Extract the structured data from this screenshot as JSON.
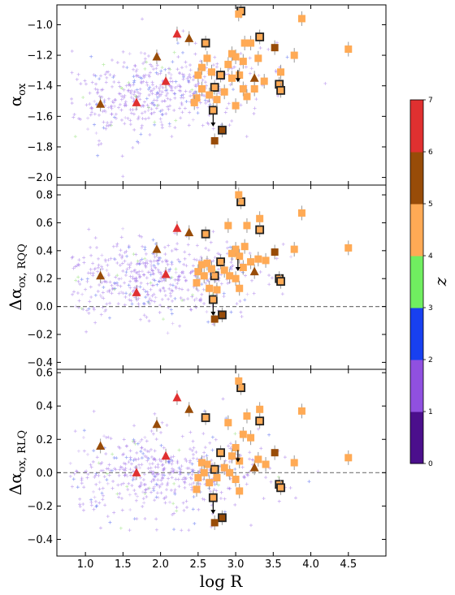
{
  "chart_data": {
    "type": "scatter",
    "x_axis": {
      "label": "log R",
      "xlim": [
        0.62,
        5.0
      ],
      "ticks": [
        1.0,
        1.5,
        2.0,
        2.5,
        3.0,
        3.5,
        4.0,
        4.5
      ],
      "tick_labels": [
        "1.0",
        "1.5",
        "2.0",
        "2.5",
        "3.0",
        "3.5",
        "4.0",
        "4.5"
      ]
    },
    "colorbar": {
      "label": "z",
      "ticks": [
        0,
        1,
        2,
        3,
        4,
        5,
        6,
        7
      ],
      "tick_labels": [
        "0",
        "1",
        "2",
        "3",
        "4",
        "5",
        "6",
        "7"
      ],
      "colors": [
        "#4b0f8c",
        "#9050e0",
        "#1840f0",
        "#70ee60",
        "#ffaa55",
        "#984c08",
        "#e03030"
      ]
    },
    "panels": [
      {
        "id": "alpha-ox",
        "ylabel": "α_ox",
        "ylim": [
          -2.05,
          -0.87
        ],
        "yticks": [
          -2.0,
          -1.8,
          -1.6,
          -1.4,
          -1.2,
          -1.0
        ],
        "ytick_labels": [
          "−2.0",
          "−1.8",
          "−1.6",
          "−1.4",
          "−1.2",
          "−1.0"
        ],
        "reference_line": null,
        "triangles": [
          {
            "x": 1.2,
            "y": -1.52,
            "z": 5.3
          },
          {
            "x": 1.68,
            "y": -1.51,
            "z": 6.5
          },
          {
            "x": 1.95,
            "y": -1.21,
            "z": 5.3
          },
          {
            "x": 2.07,
            "y": -1.37,
            "z": 6.5
          },
          {
            "x": 2.22,
            "y": -1.06,
            "z": 6.5
          },
          {
            "x": 2.38,
            "y": -1.09,
            "z": 5.3
          },
          {
            "x": 3.25,
            "y": -1.35,
            "z": 5.3
          }
        ],
        "squares": [
          {
            "x": 2.6,
            "y": -1.12,
            "z": 4.5,
            "boxed": true
          },
          {
            "x": 2.72,
            "y": -1.41,
            "z": 4.5,
            "boxed": true
          },
          {
            "x": 2.8,
            "y": -1.33,
            "z": 4.5,
            "boxed": true
          },
          {
            "x": 2.7,
            "y": -1.56,
            "z": 4.5,
            "boxed": true
          },
          {
            "x": 2.82,
            "y": -1.69,
            "z": 5.3,
            "boxed": true
          },
          {
            "x": 3.07,
            "y": -0.91,
            "z": 4.5,
            "boxed": true
          },
          {
            "x": 3.32,
            "y": -1.08,
            "z": 4.5,
            "boxed": true
          },
          {
            "x": 3.58,
            "y": -1.39,
            "z": 4.5,
            "boxed": true
          },
          {
            "x": 3.6,
            "y": -1.43,
            "z": 4.5,
            "boxed": true
          },
          {
            "x": 2.72,
            "y": -1.76,
            "z": 5.3,
            "boxed": false
          },
          {
            "x": 3.04,
            "y": -0.93,
            "z": 4.5,
            "boxed": false
          },
          {
            "x": 3.88,
            "y": -0.96,
            "z": 4.5,
            "boxed": false
          },
          {
            "x": 4.5,
            "y": -1.16,
            "z": 4.5,
            "boxed": false
          },
          {
            "x": 3.52,
            "y": -1.15,
            "z": 5.3,
            "boxed": false
          },
          {
            "x": 3.78,
            "y": -1.2,
            "z": 4.5,
            "boxed": false
          },
          {
            "x": 3.6,
            "y": -1.31,
            "z": 4.5,
            "boxed": false
          },
          {
            "x": 3.12,
            "y": -1.12,
            "z": 4.5,
            "boxed": false
          },
          {
            "x": 3.2,
            "y": -1.12,
            "z": 4.5,
            "boxed": false
          },
          {
            "x": 2.55,
            "y": -1.28,
            "z": 4.5,
            "boxed": false
          },
          {
            "x": 2.62,
            "y": -1.22,
            "z": 4.5,
            "boxed": false
          },
          {
            "x": 2.5,
            "y": -1.33,
            "z": 4.5,
            "boxed": false
          },
          {
            "x": 2.9,
            "y": -1.26,
            "z": 4.5,
            "boxed": false
          },
          {
            "x": 3.0,
            "y": -1.21,
            "z": 4.5,
            "boxed": false
          },
          {
            "x": 3.05,
            "y": -1.33,
            "z": 4.5,
            "boxed": false
          },
          {
            "x": 2.95,
            "y": -1.35,
            "z": 4.5,
            "boxed": false
          },
          {
            "x": 2.55,
            "y": -1.42,
            "z": 4.5,
            "boxed": false
          },
          {
            "x": 2.48,
            "y": -1.48,
            "z": 4.5,
            "boxed": false
          },
          {
            "x": 2.65,
            "y": -1.46,
            "z": 4.5,
            "boxed": false
          },
          {
            "x": 2.45,
            "y": -1.51,
            "z": 4.5,
            "boxed": false
          },
          {
            "x": 2.75,
            "y": -1.49,
            "z": 4.5,
            "boxed": false
          },
          {
            "x": 2.85,
            "y": -1.44,
            "z": 4.5,
            "boxed": false
          },
          {
            "x": 3.1,
            "y": -1.42,
            "z": 4.5,
            "boxed": false
          },
          {
            "x": 3.15,
            "y": -1.47,
            "z": 4.5,
            "boxed": false
          },
          {
            "x": 3.0,
            "y": -1.53,
            "z": 4.5,
            "boxed": false
          },
          {
            "x": 3.3,
            "y": -1.22,
            "z": 4.5,
            "boxed": false
          },
          {
            "x": 3.38,
            "y": -1.37,
            "z": 4.5,
            "boxed": false
          },
          {
            "x": 3.25,
            "y": -1.42,
            "z": 4.5,
            "boxed": false
          },
          {
            "x": 2.68,
            "y": -1.31,
            "z": 4.5,
            "boxed": false
          },
          {
            "x": 2.95,
            "y": -1.19,
            "z": 4.5,
            "boxed": false
          },
          {
            "x": 3.1,
            "y": -1.24,
            "z": 4.5,
            "boxed": false
          }
        ],
        "upper_limits": [
          {
            "x": 2.7,
            "y": -1.56
          },
          {
            "x": 3.03,
            "y": -1.27
          }
        ]
      },
      {
        "id": "delta-alpha-ox-rqq",
        "ylabel": "Δα_ox,RQQ",
        "ylim": [
          -0.45,
          0.87
        ],
        "yticks": [
          -0.4,
          -0.2,
          0.0,
          0.2,
          0.4,
          0.6,
          0.8
        ],
        "ytick_labels": [
          "−0.4",
          "−0.2",
          "0.0",
          "0.2",
          "0.4",
          "0.6",
          "0.8"
        ],
        "reference_line": 0.0,
        "triangles": [
          {
            "x": 1.2,
            "y": 0.22,
            "z": 5.3
          },
          {
            "x": 1.68,
            "y": 0.1,
            "z": 6.5
          },
          {
            "x": 1.95,
            "y": 0.41,
            "z": 5.3
          },
          {
            "x": 2.07,
            "y": 0.23,
            "z": 6.5
          },
          {
            "x": 2.22,
            "y": 0.56,
            "z": 6.5
          },
          {
            "x": 2.38,
            "y": 0.53,
            "z": 5.3
          },
          {
            "x": 3.25,
            "y": 0.25,
            "z": 5.3
          }
        ],
        "squares": [
          {
            "x": 2.6,
            "y": 0.52,
            "z": 4.5,
            "boxed": true
          },
          {
            "x": 2.72,
            "y": 0.22,
            "z": 4.5,
            "boxed": true
          },
          {
            "x": 2.8,
            "y": 0.32,
            "z": 4.5,
            "boxed": true
          },
          {
            "x": 2.7,
            "y": 0.05,
            "z": 4.5,
            "boxed": true
          },
          {
            "x": 2.82,
            "y": -0.06,
            "z": 5.3,
            "boxed": true
          },
          {
            "x": 3.07,
            "y": 0.75,
            "z": 4.5,
            "boxed": true
          },
          {
            "x": 3.32,
            "y": 0.55,
            "z": 4.5,
            "boxed": true
          },
          {
            "x": 3.58,
            "y": 0.2,
            "z": 4.5,
            "boxed": true
          },
          {
            "x": 3.6,
            "y": 0.18,
            "z": 4.5,
            "boxed": true
          },
          {
            "x": 2.72,
            "y": -0.09,
            "z": 5.3,
            "boxed": false
          },
          {
            "x": 3.04,
            "y": 0.8,
            "z": 4.5,
            "boxed": false
          },
          {
            "x": 3.88,
            "y": 0.67,
            "z": 4.5,
            "boxed": false
          },
          {
            "x": 4.5,
            "y": 0.42,
            "z": 4.5,
            "boxed": false
          },
          {
            "x": 3.52,
            "y": 0.39,
            "z": 5.3,
            "boxed": false
          },
          {
            "x": 3.78,
            "y": 0.41,
            "z": 4.5,
            "boxed": false
          },
          {
            "x": 3.32,
            "y": 0.63,
            "z": 4.5,
            "boxed": false
          },
          {
            "x": 3.0,
            "y": 0.41,
            "z": 4.5,
            "boxed": false
          },
          {
            "x": 2.9,
            "y": 0.58,
            "z": 4.5,
            "boxed": false
          },
          {
            "x": 3.15,
            "y": 0.58,
            "z": 4.5,
            "boxed": false
          },
          {
            "x": 2.55,
            "y": 0.3,
            "z": 4.5,
            "boxed": false
          },
          {
            "x": 2.62,
            "y": 0.31,
            "z": 4.5,
            "boxed": false
          },
          {
            "x": 2.5,
            "y": 0.25,
            "z": 4.5,
            "boxed": false
          },
          {
            "x": 2.48,
            "y": 0.17,
            "z": 4.5,
            "boxed": false
          },
          {
            "x": 2.65,
            "y": 0.13,
            "z": 4.5,
            "boxed": false
          },
          {
            "x": 2.75,
            "y": 0.12,
            "z": 4.5,
            "boxed": false
          },
          {
            "x": 2.85,
            "y": 0.26,
            "z": 4.5,
            "boxed": false
          },
          {
            "x": 2.95,
            "y": 0.38,
            "z": 4.5,
            "boxed": false
          },
          {
            "x": 3.05,
            "y": 0.36,
            "z": 4.5,
            "boxed": false
          },
          {
            "x": 3.1,
            "y": 0.28,
            "z": 4.5,
            "boxed": false
          },
          {
            "x": 3.2,
            "y": 0.32,
            "z": 4.5,
            "boxed": false
          },
          {
            "x": 3.0,
            "y": 0.2,
            "z": 4.5,
            "boxed": false
          },
          {
            "x": 3.05,
            "y": 0.13,
            "z": 4.5,
            "boxed": false
          },
          {
            "x": 3.4,
            "y": 0.33,
            "z": 4.5,
            "boxed": false
          },
          {
            "x": 3.3,
            "y": 0.34,
            "z": 4.5,
            "boxed": false
          },
          {
            "x": 2.58,
            "y": 0.22,
            "z": 4.5,
            "boxed": false
          },
          {
            "x": 2.92,
            "y": 0.22,
            "z": 4.5,
            "boxed": false
          },
          {
            "x": 2.68,
            "y": 0.27,
            "z": 4.5,
            "boxed": false
          },
          {
            "x": 3.12,
            "y": 0.43,
            "z": 4.5,
            "boxed": false
          }
        ],
        "upper_limits": [
          {
            "x": 2.7,
            "y": 0.05
          },
          {
            "x": 3.03,
            "y": 0.37
          }
        ]
      },
      {
        "id": "delta-alpha-ox-rlq",
        "ylabel": "Δα_ox,RLQ",
        "ylim": [
          -0.5,
          0.62
        ],
        "yticks": [
          -0.4,
          -0.2,
          0.0,
          0.2,
          0.4,
          0.6
        ],
        "ytick_labels": [
          "−0.4",
          "−0.2",
          "0.0",
          "0.2",
          "0.4",
          "0.6"
        ],
        "reference_line": 0.0,
        "triangles": [
          {
            "x": 1.2,
            "y": 0.16,
            "z": 5.3
          },
          {
            "x": 1.68,
            "y": 0.0,
            "z": 6.5
          },
          {
            "x": 1.95,
            "y": 0.29,
            "z": 5.3
          },
          {
            "x": 2.07,
            "y": 0.1,
            "z": 6.5
          },
          {
            "x": 2.22,
            "y": 0.45,
            "z": 6.5
          },
          {
            "x": 2.38,
            "y": 0.38,
            "z": 5.3
          },
          {
            "x": 3.25,
            "y": 0.03,
            "z": 5.3
          }
        ],
        "squares": [
          {
            "x": 2.6,
            "y": 0.33,
            "z": 4.5,
            "boxed": true
          },
          {
            "x": 2.72,
            "y": 0.02,
            "z": 4.5,
            "boxed": true
          },
          {
            "x": 2.8,
            "y": 0.12,
            "z": 4.5,
            "boxed": true
          },
          {
            "x": 2.7,
            "y": -0.15,
            "z": 4.5,
            "boxed": true
          },
          {
            "x": 2.82,
            "y": -0.27,
            "z": 5.3,
            "boxed": true
          },
          {
            "x": 3.07,
            "y": 0.51,
            "z": 4.5,
            "boxed": true
          },
          {
            "x": 3.32,
            "y": 0.31,
            "z": 4.5,
            "boxed": true
          },
          {
            "x": 3.58,
            "y": -0.07,
            "z": 4.5,
            "boxed": true
          },
          {
            "x": 3.6,
            "y": -0.09,
            "z": 4.5,
            "boxed": true
          },
          {
            "x": 2.72,
            "y": -0.3,
            "z": 5.3,
            "boxed": false
          },
          {
            "x": 3.04,
            "y": 0.55,
            "z": 4.5,
            "boxed": false
          },
          {
            "x": 3.88,
            "y": 0.37,
            "z": 4.5,
            "boxed": false
          },
          {
            "x": 4.5,
            "y": 0.09,
            "z": 4.5,
            "boxed": false
          },
          {
            "x": 3.52,
            "y": 0.12,
            "z": 5.3,
            "boxed": false
          },
          {
            "x": 3.32,
            "y": 0.38,
            "z": 4.5,
            "boxed": false
          },
          {
            "x": 3.15,
            "y": 0.34,
            "z": 4.5,
            "boxed": false
          },
          {
            "x": 2.9,
            "y": 0.3,
            "z": 4.5,
            "boxed": false
          },
          {
            "x": 3.0,
            "y": 0.15,
            "z": 4.5,
            "boxed": false
          },
          {
            "x": 3.1,
            "y": 0.23,
            "z": 4.5,
            "boxed": false
          },
          {
            "x": 3.2,
            "y": 0.21,
            "z": 4.5,
            "boxed": false
          },
          {
            "x": 2.55,
            "y": 0.06,
            "z": 4.5,
            "boxed": false
          },
          {
            "x": 2.62,
            "y": 0.05,
            "z": 4.5,
            "boxed": false
          },
          {
            "x": 2.5,
            "y": -0.03,
            "z": 4.5,
            "boxed": false
          },
          {
            "x": 2.48,
            "y": -0.1,
            "z": 4.5,
            "boxed": false
          },
          {
            "x": 2.65,
            "y": -0.06,
            "z": 4.5,
            "boxed": false
          },
          {
            "x": 2.75,
            "y": -0.03,
            "z": 4.5,
            "boxed": false
          },
          {
            "x": 2.85,
            "y": 0.03,
            "z": 4.5,
            "boxed": false
          },
          {
            "x": 2.95,
            "y": 0.1,
            "z": 4.5,
            "boxed": false
          },
          {
            "x": 3.05,
            "y": 0.07,
            "z": 4.5,
            "boxed": false
          },
          {
            "x": 3.0,
            "y": -0.04,
            "z": 4.5,
            "boxed": false
          },
          {
            "x": 3.05,
            "y": -0.11,
            "z": 4.5,
            "boxed": false
          },
          {
            "x": 3.4,
            "y": 0.05,
            "z": 4.5,
            "boxed": false
          },
          {
            "x": 3.3,
            "y": 0.08,
            "z": 4.5,
            "boxed": false
          },
          {
            "x": 3.78,
            "y": 0.06,
            "z": 4.5,
            "boxed": false
          },
          {
            "x": 2.58,
            "y": 0.0,
            "z": 4.5,
            "boxed": false
          },
          {
            "x": 2.92,
            "y": 0.0,
            "z": 4.5,
            "boxed": false
          }
        ],
        "upper_limits": [
          {
            "x": 2.7,
            "y": -0.15
          },
          {
            "x": 3.03,
            "y": 0.16
          }
        ]
      }
    ]
  }
}
